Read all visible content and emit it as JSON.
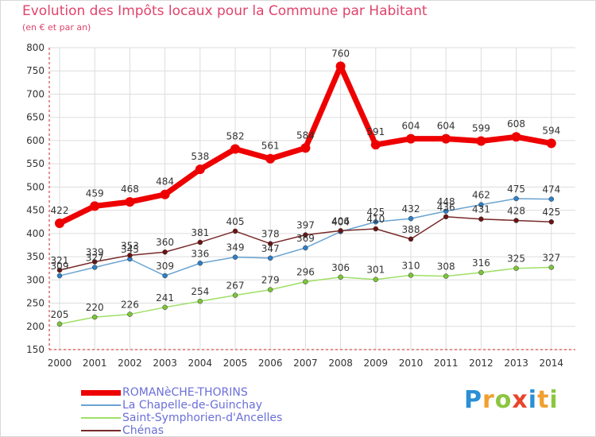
{
  "chart_data": {
    "type": "line",
    "title": "Evolution des Impôts locaux pour la Commune par Habitant",
    "subtitle": "(en € et par an)",
    "categories": [
      "2000",
      "2001",
      "2002",
      "2003",
      "2004",
      "2005",
      "2006",
      "2007",
      "2008",
      "2009",
      "2010",
      "2011",
      "2012",
      "2013",
      "2014"
    ],
    "ylim": [
      150,
      800
    ],
    "yticks": [
      150,
      200,
      250,
      300,
      350,
      400,
      450,
      500,
      550,
      600,
      650,
      700,
      750,
      800
    ],
    "grid": true,
    "series": [
      {
        "name": "ROMANèCHE-THORINS",
        "color": "#ee0000",
        "marker": "#ee0000",
        "width": 7,
        "values": [
          422,
          459,
          468,
          484,
          538,
          582,
          561,
          584,
          760,
          591,
          604,
          604,
          599,
          608,
          594
        ]
      },
      {
        "name": "La Chapelle-de-Guinchay",
        "color": "#6aa3d0",
        "marker": "#2f7fc4",
        "width": 1.5,
        "values": [
          309,
          327,
          345,
          309,
          336,
          349,
          347,
          369,
          404,
          425,
          432,
          448,
          462,
          475,
          474
        ]
      },
      {
        "name": "Saint-Symphorien-d'Ancelles",
        "color": "#9fe066",
        "marker": "#7cc43a",
        "width": 1.5,
        "values": [
          205,
          220,
          226,
          241,
          254,
          267,
          279,
          296,
          306,
          301,
          310,
          308,
          316,
          325,
          327
        ]
      },
      {
        "name": "Chénas",
        "color": "#7a2a2a",
        "marker": "#6a1414",
        "width": 1.5,
        "values": [
          321,
          339,
          353,
          360,
          381,
          405,
          378,
          397,
          406,
          410,
          388,
          436,
          431,
          428,
          425
        ]
      }
    ]
  },
  "legend": {
    "items": [
      {
        "label": "ROMANèCHE-THORINS",
        "color": "#ee0000",
        "width": 7
      },
      {
        "label": "La Chapelle-de-Guinchay",
        "color": "#6aa3d0",
        "width": 2
      },
      {
        "label": "Saint-Symphorien-d'Ancelles",
        "color": "#9fe066",
        "width": 2
      },
      {
        "label": "Chénas",
        "color": "#7a2a2a",
        "width": 2
      }
    ]
  },
  "logo": {
    "text": "Proxiti",
    "letters": [
      "P",
      "r",
      "o",
      "x",
      "i",
      "t",
      "i"
    ]
  }
}
